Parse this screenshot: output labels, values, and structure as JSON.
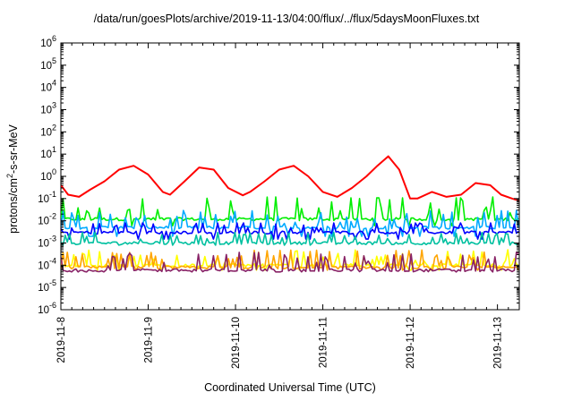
{
  "chart_data": {
    "type": "line",
    "title": "/data/run/goesPlots/archive/2019-11-13/04:00/flux/../flux/5daysMoonFluxes.txt",
    "xlabel": "Coordinated Universal Time (UTC)",
    "ylabel": "protons/cm2-s-sr-MeV",
    "yscale": "log",
    "ylim": [
      1e-06,
      1000000.0
    ],
    "y_ticks": [
      "10-6",
      "10-5",
      "10-4",
      "10-3",
      "10-2",
      "10-1",
      "100",
      "101",
      "102",
      "103",
      "104",
      "105",
      "106"
    ],
    "xlim": [
      "2019-11-08T00:00",
      "2019-11-13T06:00"
    ],
    "x_ticks": [
      "2019-11-8",
      "2019-11-9",
      "2019-11-10",
      "2019-11-11",
      "2019-11-12",
      "2019-11-13"
    ],
    "grid": false,
    "legend": "none",
    "series": [
      {
        "color": "#ff0000",
        "x": [
          "2019-11-08T00:00",
          "2019-11-08T02:00",
          "2019-11-08T05:00",
          "2019-11-08T08:00",
          "2019-11-08T12:00",
          "2019-11-08T16:00",
          "2019-11-08T20:00",
          "2019-11-09T00:00",
          "2019-11-09T04:00",
          "2019-11-09T06:00",
          "2019-11-09T10:00",
          "2019-11-09T14:00",
          "2019-11-09T18:00",
          "2019-11-09T22:00",
          "2019-11-10T02:00",
          "2019-11-10T04:00",
          "2019-11-10T08:00",
          "2019-11-10T12:00",
          "2019-11-10T16:00",
          "2019-11-10T20:00",
          "2019-11-11T00:00",
          "2019-11-11T04:00",
          "2019-11-11T08:00",
          "2019-11-11T12:00",
          "2019-11-11T15:00",
          "2019-11-11T18:00",
          "2019-11-11T21:00",
          "2019-11-12T00:00",
          "2019-11-12T02:00",
          "2019-11-12T06:00",
          "2019-11-12T10:00",
          "2019-11-12T14:00",
          "2019-11-12T18:00",
          "2019-11-12T22:00",
          "2019-11-13T01:00",
          "2019-11-13T04:00",
          "2019-11-13T06:00"
        ],
        "values": [
          0.4,
          0.15,
          0.12,
          0.25,
          0.6,
          2,
          3,
          1.2,
          0.2,
          0.15,
          0.6,
          2.5,
          2,
          0.3,
          0.14,
          0.2,
          0.6,
          2,
          3,
          1,
          0.2,
          0.12,
          0.3,
          1,
          3,
          8,
          2,
          0.1,
          0.1,
          0.2,
          0.12,
          0.15,
          0.5,
          0.4,
          0.15,
          0.1,
          0.08
        ]
      },
      {
        "color": "#00ee00",
        "x": [
          "2019-11-08T00:00",
          "2019-11-13T06:00"
        ],
        "values": [
          0.012,
          0.012
        ],
        "range": [
          0.006,
          0.12
        ]
      },
      {
        "color": "#00aaff",
        "x": [
          "2019-11-08T00:00",
          "2019-11-13T06:00"
        ],
        "values": [
          0.005,
          0.005
        ],
        "range": [
          0.002,
          0.03
        ]
      },
      {
        "color": "#0000ff",
        "x": [
          "2019-11-08T00:00",
          "2019-11-13T06:00"
        ],
        "values": [
          0.003,
          0.003
        ],
        "range": [
          0.0015,
          0.008
        ]
      },
      {
        "color": "#00c0a0",
        "x": [
          "2019-11-08T00:00",
          "2019-11-13T06:00"
        ],
        "values": [
          0.001,
          0.001
        ],
        "range": [
          0.0008,
          0.003
        ]
      },
      {
        "color": "#ffff00",
        "x": [
          "2019-11-08T00:00",
          "2019-11-13T06:00"
        ],
        "values": [
          0.0001,
          0.0001
        ],
        "range": [
          6e-05,
          0.0005
        ]
      },
      {
        "color": "#ffa500",
        "x": [
          "2019-11-08T00:00",
          "2019-11-13T06:00"
        ],
        "values": [
          8e-05,
          8e-05
        ],
        "range": [
          6e-05,
          0.0005
        ]
      },
      {
        "color": "#882266",
        "x": [
          "2019-11-08T00:00",
          "2019-11-13T06:00"
        ],
        "values": [
          6e-05,
          6e-05
        ],
        "range": [
          5e-05,
          0.0004
        ]
      }
    ]
  }
}
